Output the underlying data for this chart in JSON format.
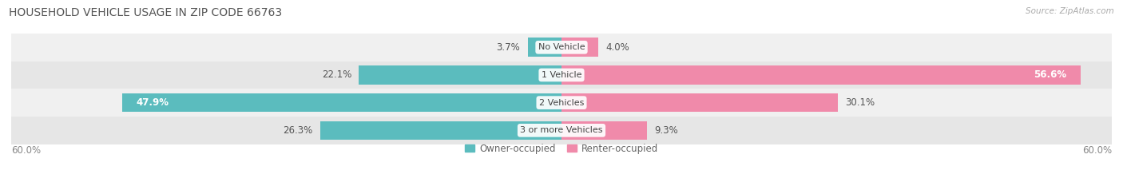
{
  "title": "HOUSEHOLD VEHICLE USAGE IN ZIP CODE 66763",
  "source": "Source: ZipAtlas.com",
  "categories": [
    "No Vehicle",
    "1 Vehicle",
    "2 Vehicles",
    "3 or more Vehicles"
  ],
  "owner_values": [
    3.7,
    22.1,
    47.9,
    26.3
  ],
  "renter_values": [
    4.0,
    56.6,
    30.1,
    9.3
  ],
  "owner_color": "#5bbcbe",
  "renter_color": "#f08aaa",
  "axis_limit": 60.0,
  "legend_owner": "Owner-occupied",
  "legend_renter": "Renter-occupied",
  "axis_label_left": "60.0%",
  "axis_label_right": "60.0%",
  "title_fontsize": 10,
  "label_fontsize": 8.5,
  "category_fontsize": 8.0,
  "source_fontsize": 7.5,
  "row_colors": [
    "#f0f0f0",
    "#e6e6e6",
    "#f0f0f0",
    "#e6e6e6"
  ],
  "row_separator_color": "#cccccc"
}
